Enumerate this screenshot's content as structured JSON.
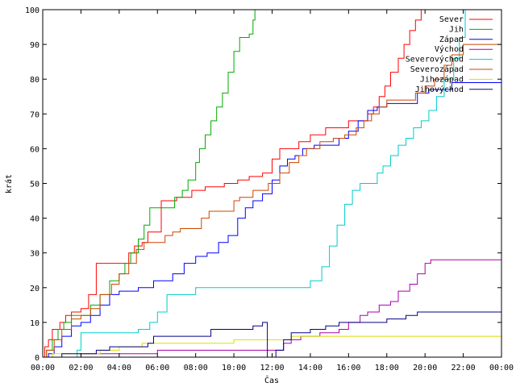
{
  "chart_data": {
    "type": "line",
    "title": "",
    "xlabel": "Čas",
    "ylabel": "krát",
    "xlim": [
      0,
      24
    ],
    "ylim": [
      0,
      100
    ],
    "x_ticks": [
      "00:00",
      "02:00",
      "04:00",
      "06:00",
      "08:00",
      "10:00",
      "12:00",
      "14:00",
      "16:00",
      "18:00",
      "20:00",
      "22:00",
      "00:00"
    ],
    "y_ticks": [
      0,
      10,
      20,
      30,
      40,
      50,
      60,
      70,
      80,
      90,
      100
    ],
    "grid": false,
    "legend_position": "top-right",
    "series": [
      {
        "name": "Sever",
        "color": "#ff0000",
        "points": [
          [
            0,
            0
          ],
          [
            0.1,
            3
          ],
          [
            0.3,
            5
          ],
          [
            0.5,
            8
          ],
          [
            0.9,
            10
          ],
          [
            1.2,
            12
          ],
          [
            1.5,
            13
          ],
          [
            2.0,
            14
          ],
          [
            2.4,
            18
          ],
          [
            2.8,
            27
          ],
          [
            3.5,
            27
          ],
          [
            4.0,
            27
          ],
          [
            4.5,
            30
          ],
          [
            4.8,
            32
          ],
          [
            5.2,
            33
          ],
          [
            5.5,
            36
          ],
          [
            6.2,
            45
          ],
          [
            7.0,
            46
          ],
          [
            7.8,
            48
          ],
          [
            8.5,
            49
          ],
          [
            9.5,
            50
          ],
          [
            10.2,
            51
          ],
          [
            10.8,
            52
          ],
          [
            11.5,
            53
          ],
          [
            12.0,
            57
          ],
          [
            12.4,
            60
          ],
          [
            13.4,
            62
          ],
          [
            14.0,
            64
          ],
          [
            14.8,
            66
          ],
          [
            15.4,
            66
          ],
          [
            16.0,
            68
          ],
          [
            16.6,
            68
          ],
          [
            17.0,
            70
          ],
          [
            17.3,
            72
          ],
          [
            17.6,
            75
          ],
          [
            17.9,
            78
          ],
          [
            18.2,
            82
          ],
          [
            18.6,
            86
          ],
          [
            18.9,
            90
          ],
          [
            19.2,
            94
          ],
          [
            19.5,
            97
          ],
          [
            19.8,
            100
          ],
          [
            24,
            100
          ]
        ]
      },
      {
        "name": "Jih",
        "color": "#00aa00",
        "points": [
          [
            0,
            0
          ],
          [
            0.2,
            2
          ],
          [
            0.5,
            5
          ],
          [
            0.8,
            8
          ],
          [
            1.1,
            10
          ],
          [
            1.5,
            12
          ],
          [
            2.0,
            12
          ],
          [
            2.5,
            15
          ],
          [
            3.0,
            18
          ],
          [
            3.5,
            22
          ],
          [
            4.0,
            24
          ],
          [
            4.3,
            27
          ],
          [
            4.6,
            30
          ],
          [
            5.0,
            34
          ],
          [
            5.3,
            38
          ],
          [
            5.6,
            43
          ],
          [
            6.0,
            43
          ],
          [
            6.5,
            43
          ],
          [
            6.9,
            46
          ],
          [
            7.3,
            48
          ],
          [
            7.6,
            51
          ],
          [
            8.0,
            56
          ],
          [
            8.2,
            60
          ],
          [
            8.5,
            64
          ],
          [
            8.8,
            68
          ],
          [
            9.1,
            72
          ],
          [
            9.4,
            76
          ],
          [
            9.7,
            82
          ],
          [
            10.0,
            88
          ],
          [
            10.3,
            92
          ],
          [
            10.8,
            93
          ],
          [
            11.0,
            97
          ],
          [
            11.1,
            100
          ],
          [
            24,
            100
          ]
        ]
      },
      {
        "name": "Západ",
        "color": "#0000ff",
        "points": [
          [
            0,
            0
          ],
          [
            0.3,
            1
          ],
          [
            0.6,
            3
          ],
          [
            1.0,
            6
          ],
          [
            1.5,
            9
          ],
          [
            2.0,
            10
          ],
          [
            2.5,
            12
          ],
          [
            3.0,
            15
          ],
          [
            3.5,
            18
          ],
          [
            4.0,
            19
          ],
          [
            4.5,
            19
          ],
          [
            5.0,
            20
          ],
          [
            5.8,
            22
          ],
          [
            6.8,
            24
          ],
          [
            7.4,
            27
          ],
          [
            8.0,
            29
          ],
          [
            8.6,
            30
          ],
          [
            9.2,
            33
          ],
          [
            9.7,
            35
          ],
          [
            10.2,
            40
          ],
          [
            10.6,
            43
          ],
          [
            11.0,
            45
          ],
          [
            11.5,
            47
          ],
          [
            12.0,
            51
          ],
          [
            12.4,
            55
          ],
          [
            12.8,
            57
          ],
          [
            13.2,
            58
          ],
          [
            13.6,
            60
          ],
          [
            14.2,
            61
          ],
          [
            15.0,
            61
          ],
          [
            15.5,
            63
          ],
          [
            16.0,
            65
          ],
          [
            16.5,
            68
          ],
          [
            17.0,
            71
          ],
          [
            17.5,
            72
          ],
          [
            18.0,
            73
          ],
          [
            19.0,
            73
          ],
          [
            19.6,
            76
          ],
          [
            20.2,
            77
          ],
          [
            21.0,
            77
          ],
          [
            21.4,
            79
          ],
          [
            22.0,
            79
          ],
          [
            24,
            79
          ]
        ]
      },
      {
        "name": "Východ",
        "color": "#aa00aa",
        "points": [
          [
            0,
            0
          ],
          [
            1.0,
            0
          ],
          [
            2.0,
            1
          ],
          [
            4.0,
            1
          ],
          [
            6.0,
            2
          ],
          [
            11.0,
            2
          ],
          [
            12.0,
            2
          ],
          [
            12.6,
            4
          ],
          [
            13.0,
            5
          ],
          [
            13.5,
            6
          ],
          [
            14.5,
            7
          ],
          [
            15.5,
            8
          ],
          [
            16.0,
            10
          ],
          [
            16.6,
            12
          ],
          [
            17.0,
            13
          ],
          [
            17.6,
            15
          ],
          [
            18.2,
            16
          ],
          [
            18.6,
            19
          ],
          [
            19.2,
            21
          ],
          [
            19.6,
            24
          ],
          [
            20.0,
            27
          ],
          [
            20.3,
            28
          ],
          [
            24,
            28
          ]
        ]
      },
      {
        "name": "Severovýchod",
        "color": "#00cccc",
        "points": [
          [
            0,
            0
          ],
          [
            1.0,
            0
          ],
          [
            1.8,
            2
          ],
          [
            2.0,
            7
          ],
          [
            3.0,
            7
          ],
          [
            4.5,
            7
          ],
          [
            5.0,
            8
          ],
          [
            5.6,
            10
          ],
          [
            6.0,
            13
          ],
          [
            6.5,
            18
          ],
          [
            7.5,
            18
          ],
          [
            8.0,
            20
          ],
          [
            11.0,
            20
          ],
          [
            12.0,
            20
          ],
          [
            13.0,
            20
          ],
          [
            14.0,
            22
          ],
          [
            14.6,
            26
          ],
          [
            15.0,
            32
          ],
          [
            15.4,
            38
          ],
          [
            15.8,
            44
          ],
          [
            16.2,
            48
          ],
          [
            16.6,
            50
          ],
          [
            17.2,
            50
          ],
          [
            17.5,
            53
          ],
          [
            17.8,
            55
          ],
          [
            18.2,
            58
          ],
          [
            18.6,
            61
          ],
          [
            19.0,
            63
          ],
          [
            19.4,
            66
          ],
          [
            19.8,
            68
          ],
          [
            20.2,
            71
          ],
          [
            20.6,
            75
          ],
          [
            21.0,
            80
          ],
          [
            21.5,
            86
          ],
          [
            21.8,
            92
          ],
          [
            22.1,
            100
          ],
          [
            24,
            100
          ]
        ]
      },
      {
        "name": "Severozápad",
        "color": "#cc4400",
        "points": [
          [
            0,
            0
          ],
          [
            0.2,
            2
          ],
          [
            0.6,
            5
          ],
          [
            1.0,
            8
          ],
          [
            1.5,
            11
          ],
          [
            2.0,
            12
          ],
          [
            2.5,
            14
          ],
          [
            3.0,
            18
          ],
          [
            3.6,
            21
          ],
          [
            4.0,
            24
          ],
          [
            4.5,
            27
          ],
          [
            4.9,
            31
          ],
          [
            5.3,
            33
          ],
          [
            6.0,
            33
          ],
          [
            6.4,
            35
          ],
          [
            6.8,
            36
          ],
          [
            7.2,
            37
          ],
          [
            8.0,
            37
          ],
          [
            8.3,
            40
          ],
          [
            8.7,
            42
          ],
          [
            9.6,
            42
          ],
          [
            10.0,
            45
          ],
          [
            10.3,
            46
          ],
          [
            11.0,
            48
          ],
          [
            11.8,
            50
          ],
          [
            12.4,
            53
          ],
          [
            12.9,
            56
          ],
          [
            13.4,
            58
          ],
          [
            13.8,
            60
          ],
          [
            14.5,
            62
          ],
          [
            15.2,
            63
          ],
          [
            15.8,
            64
          ],
          [
            16.4,
            66
          ],
          [
            16.8,
            68
          ],
          [
            17.2,
            70
          ],
          [
            17.6,
            72
          ],
          [
            18.0,
            74
          ],
          [
            19.0,
            74
          ],
          [
            19.5,
            76
          ],
          [
            20.0,
            78
          ],
          [
            20.5,
            80
          ],
          [
            21.0,
            84
          ],
          [
            21.4,
            87
          ],
          [
            22.0,
            90
          ],
          [
            24,
            90
          ]
        ]
      },
      {
        "name": "Jihozápad",
        "color": "#dddd00",
        "points": [
          [
            0,
            0
          ],
          [
            0.5,
            1
          ],
          [
            2.0,
            1
          ],
          [
            3.0,
            2
          ],
          [
            4.0,
            3
          ],
          [
            5.2,
            4
          ],
          [
            7.2,
            4
          ],
          [
            8.0,
            4
          ],
          [
            10.0,
            5
          ],
          [
            12.0,
            5
          ],
          [
            13.0,
            6
          ],
          [
            20.0,
            6
          ],
          [
            24,
            6
          ]
        ]
      },
      {
        "name": "Jihovýchod",
        "color": "#000088",
        "points": [
          [
            0,
            0
          ],
          [
            1.0,
            1
          ],
          [
            2.8,
            2
          ],
          [
            3.5,
            3
          ],
          [
            5.5,
            4
          ],
          [
            5.8,
            6
          ],
          [
            8.0,
            6
          ],
          [
            8.8,
            8
          ],
          [
            11.0,
            9
          ],
          [
            11.5,
            10
          ],
          [
            11.7,
            10
          ],
          [
            11.75,
            0
          ],
          [
            12.0,
            0
          ],
          [
            12.2,
            2
          ],
          [
            12.6,
            5
          ],
          [
            13.0,
            7
          ],
          [
            14.0,
            8
          ],
          [
            14.8,
            9
          ],
          [
            15.5,
            10
          ],
          [
            17.0,
            10
          ],
          [
            18.0,
            11
          ],
          [
            19.0,
            12
          ],
          [
            19.6,
            13
          ],
          [
            24,
            13
          ]
        ]
      }
    ]
  }
}
